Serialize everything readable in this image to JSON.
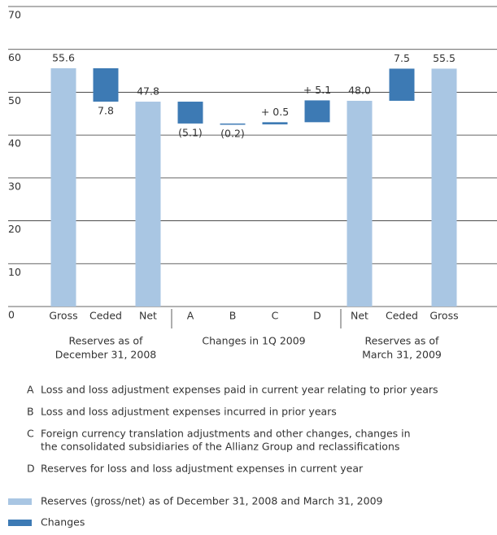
{
  "chart_data": {
    "type": "waterfall",
    "categories": [
      "Gross",
      "Ceded",
      "Net",
      "A",
      "B",
      "C",
      "D",
      "Net",
      "Ceded",
      "Gross"
    ],
    "kinds": [
      "total",
      "change",
      "total",
      "change",
      "change",
      "change",
      "change",
      "total",
      "change",
      "total"
    ],
    "values": [
      55.6,
      -7.8,
      47.8,
      -5.1,
      -0.2,
      0.5,
      5.1,
      48.0,
      7.5,
      55.5
    ],
    "value_labels": [
      "55.6",
      "7.8",
      "47.8",
      "(5.1)",
      "(0.2)",
      "+ 0.5",
      "+ 5.1",
      "48.0",
      "7.5",
      "55.5"
    ],
    "ylim": [
      0,
      70
    ],
    "yticks": [
      0,
      10,
      20,
      30,
      40,
      50,
      60,
      70
    ],
    "grid": true,
    "total_color": "#a9c6e3",
    "change_color": "#3d7ab4",
    "groups": [
      {
        "lines": [
          "Reserves as of",
          "December 31, 2008"
        ],
        "size": 3
      },
      {
        "lines": [
          "Changes in 1Q 2009"
        ],
        "size": 4
      },
      {
        "lines": [
          "Reserves as of",
          "March 31, 2009"
        ],
        "size": 3
      }
    ],
    "notes": [
      {
        "key": "A",
        "lines": [
          "Loss and loss adjustment expenses paid in current year relating to prior years"
        ]
      },
      {
        "key": "B",
        "lines": [
          "Loss and loss adjustment expenses incurred in prior years"
        ]
      },
      {
        "key": "C",
        "lines": [
          "Foreign currency translation adjustments and other changes, changes in",
          "the consolidated subsidiaries of the Allianz Group and reclassifications"
        ]
      },
      {
        "key": "D",
        "lines": [
          "Reserves for loss and loss adjustment expenses in current year"
        ]
      }
    ],
    "legend": [
      "Reserves (gross/net) as of December 31, 2008 and March 31, 2009",
      "Changes"
    ]
  }
}
